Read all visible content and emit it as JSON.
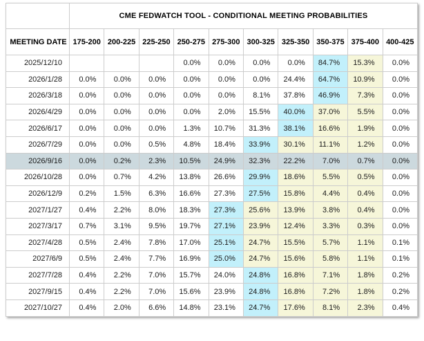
{
  "title": "CME FEDWATCH TOOL - CONDITIONAL MEETING PROBABILITIES",
  "meeting_date_header": "MEETING DATE",
  "rate_ranges": [
    "175-200",
    "200-225",
    "225-250",
    "250-275",
    "275-300",
    "300-325",
    "325-350",
    "350-375",
    "375-400",
    "400-425"
  ],
  "colors": {
    "blue_highlight": "#c2f0fb",
    "yellow_highlight": "#f6f6d9",
    "selected_row": "#ccd9de",
    "border": "#cccccc"
  },
  "rows": [
    {
      "date": "2025/12/10",
      "selected": false,
      "cells": [
        {
          "text": "",
          "highlight": "none"
        },
        {
          "text": "",
          "highlight": "none"
        },
        {
          "text": "",
          "highlight": "none"
        },
        {
          "text": "0.0%",
          "highlight": "none"
        },
        {
          "text": "0.0%",
          "highlight": "none"
        },
        {
          "text": "0.0%",
          "highlight": "none"
        },
        {
          "text": "0.0%",
          "highlight": "none"
        },
        {
          "text": "84.7%",
          "highlight": "blue"
        },
        {
          "text": "15.3%",
          "highlight": "yellow"
        },
        {
          "text": "0.0%",
          "highlight": "none"
        }
      ]
    },
    {
      "date": "2026/1/28",
      "selected": false,
      "cells": [
        {
          "text": "0.0%",
          "highlight": "none"
        },
        {
          "text": "0.0%",
          "highlight": "none"
        },
        {
          "text": "0.0%",
          "highlight": "none"
        },
        {
          "text": "0.0%",
          "highlight": "none"
        },
        {
          "text": "0.0%",
          "highlight": "none"
        },
        {
          "text": "0.0%",
          "highlight": "none"
        },
        {
          "text": "24.4%",
          "highlight": "none"
        },
        {
          "text": "64.7%",
          "highlight": "blue"
        },
        {
          "text": "10.9%",
          "highlight": "yellow"
        },
        {
          "text": "0.0%",
          "highlight": "none"
        }
      ]
    },
    {
      "date": "2026/3/18",
      "selected": false,
      "cells": [
        {
          "text": "0.0%",
          "highlight": "none"
        },
        {
          "text": "0.0%",
          "highlight": "none"
        },
        {
          "text": "0.0%",
          "highlight": "none"
        },
        {
          "text": "0.0%",
          "highlight": "none"
        },
        {
          "text": "0.0%",
          "highlight": "none"
        },
        {
          "text": "8.1%",
          "highlight": "none"
        },
        {
          "text": "37.8%",
          "highlight": "none"
        },
        {
          "text": "46.9%",
          "highlight": "blue"
        },
        {
          "text": "7.3%",
          "highlight": "yellow"
        },
        {
          "text": "0.0%",
          "highlight": "none"
        }
      ]
    },
    {
      "date": "2026/4/29",
      "selected": false,
      "cells": [
        {
          "text": "0.0%",
          "highlight": "none"
        },
        {
          "text": "0.0%",
          "highlight": "none"
        },
        {
          "text": "0.0%",
          "highlight": "none"
        },
        {
          "text": "0.0%",
          "highlight": "none"
        },
        {
          "text": "2.0%",
          "highlight": "none"
        },
        {
          "text": "15.5%",
          "highlight": "none"
        },
        {
          "text": "40.0%",
          "highlight": "blue"
        },
        {
          "text": "37.0%",
          "highlight": "yellow"
        },
        {
          "text": "5.5%",
          "highlight": "yellow"
        },
        {
          "text": "0.0%",
          "highlight": "none"
        }
      ]
    },
    {
      "date": "2026/6/17",
      "selected": false,
      "cells": [
        {
          "text": "0.0%",
          "highlight": "none"
        },
        {
          "text": "0.0%",
          "highlight": "none"
        },
        {
          "text": "0.0%",
          "highlight": "none"
        },
        {
          "text": "1.3%",
          "highlight": "none"
        },
        {
          "text": "10.7%",
          "highlight": "none"
        },
        {
          "text": "31.3%",
          "highlight": "none"
        },
        {
          "text": "38.1%",
          "highlight": "blue"
        },
        {
          "text": "16.6%",
          "highlight": "yellow"
        },
        {
          "text": "1.9%",
          "highlight": "yellow"
        },
        {
          "text": "0.0%",
          "highlight": "none"
        }
      ]
    },
    {
      "date": "2026/7/29",
      "selected": false,
      "cells": [
        {
          "text": "0.0%",
          "highlight": "none"
        },
        {
          "text": "0.0%",
          "highlight": "none"
        },
        {
          "text": "0.5%",
          "highlight": "none"
        },
        {
          "text": "4.8%",
          "highlight": "none"
        },
        {
          "text": "18.4%",
          "highlight": "none"
        },
        {
          "text": "33.9%",
          "highlight": "blue"
        },
        {
          "text": "30.1%",
          "highlight": "yellow"
        },
        {
          "text": "11.1%",
          "highlight": "yellow"
        },
        {
          "text": "1.2%",
          "highlight": "yellow"
        },
        {
          "text": "0.0%",
          "highlight": "none"
        }
      ]
    },
    {
      "date": "2026/9/16",
      "selected": true,
      "cells": [
        {
          "text": "0.0%",
          "highlight": "none"
        },
        {
          "text": "0.2%",
          "highlight": "none"
        },
        {
          "text": "2.3%",
          "highlight": "none"
        },
        {
          "text": "10.5%",
          "highlight": "none"
        },
        {
          "text": "24.9%",
          "highlight": "none"
        },
        {
          "text": "32.3%",
          "highlight": "none"
        },
        {
          "text": "22.2%",
          "highlight": "none"
        },
        {
          "text": "7.0%",
          "highlight": "none"
        },
        {
          "text": "0.7%",
          "highlight": "none"
        },
        {
          "text": "0.0%",
          "highlight": "none"
        }
      ]
    },
    {
      "date": "2026/10/28",
      "selected": false,
      "cells": [
        {
          "text": "0.0%",
          "highlight": "none"
        },
        {
          "text": "0.7%",
          "highlight": "none"
        },
        {
          "text": "4.2%",
          "highlight": "none"
        },
        {
          "text": "13.8%",
          "highlight": "none"
        },
        {
          "text": "26.6%",
          "highlight": "none"
        },
        {
          "text": "29.9%",
          "highlight": "blue"
        },
        {
          "text": "18.6%",
          "highlight": "yellow"
        },
        {
          "text": "5.5%",
          "highlight": "yellow"
        },
        {
          "text": "0.5%",
          "highlight": "yellow"
        },
        {
          "text": "0.0%",
          "highlight": "none"
        }
      ]
    },
    {
      "date": "2026/12/9",
      "selected": false,
      "cells": [
        {
          "text": "0.2%",
          "highlight": "none"
        },
        {
          "text": "1.5%",
          "highlight": "none"
        },
        {
          "text": "6.3%",
          "highlight": "none"
        },
        {
          "text": "16.6%",
          "highlight": "none"
        },
        {
          "text": "27.3%",
          "highlight": "none"
        },
        {
          "text": "27.5%",
          "highlight": "blue"
        },
        {
          "text": "15.8%",
          "highlight": "yellow"
        },
        {
          "text": "4.4%",
          "highlight": "yellow"
        },
        {
          "text": "0.4%",
          "highlight": "yellow"
        },
        {
          "text": "0.0%",
          "highlight": "none"
        }
      ]
    },
    {
      "date": "2027/1/27",
      "selected": false,
      "cells": [
        {
          "text": "0.4%",
          "highlight": "none"
        },
        {
          "text": "2.2%",
          "highlight": "none"
        },
        {
          "text": "8.0%",
          "highlight": "none"
        },
        {
          "text": "18.3%",
          "highlight": "none"
        },
        {
          "text": "27.3%",
          "highlight": "blue"
        },
        {
          "text": "25.6%",
          "highlight": "yellow"
        },
        {
          "text": "13.9%",
          "highlight": "yellow"
        },
        {
          "text": "3.8%",
          "highlight": "yellow"
        },
        {
          "text": "0.4%",
          "highlight": "yellow"
        },
        {
          "text": "0.0%",
          "highlight": "none"
        }
      ]
    },
    {
      "date": "2027/3/17",
      "selected": false,
      "cells": [
        {
          "text": "0.7%",
          "highlight": "none"
        },
        {
          "text": "3.1%",
          "highlight": "none"
        },
        {
          "text": "9.5%",
          "highlight": "none"
        },
        {
          "text": "19.7%",
          "highlight": "none"
        },
        {
          "text": "27.1%",
          "highlight": "blue"
        },
        {
          "text": "23.9%",
          "highlight": "yellow"
        },
        {
          "text": "12.4%",
          "highlight": "yellow"
        },
        {
          "text": "3.3%",
          "highlight": "yellow"
        },
        {
          "text": "0.3%",
          "highlight": "yellow"
        },
        {
          "text": "0.0%",
          "highlight": "none"
        }
      ]
    },
    {
      "date": "2027/4/28",
      "selected": false,
      "cells": [
        {
          "text": "0.5%",
          "highlight": "none"
        },
        {
          "text": "2.4%",
          "highlight": "none"
        },
        {
          "text": "7.8%",
          "highlight": "none"
        },
        {
          "text": "17.0%",
          "highlight": "none"
        },
        {
          "text": "25.1%",
          "highlight": "blue"
        },
        {
          "text": "24.7%",
          "highlight": "yellow"
        },
        {
          "text": "15.5%",
          "highlight": "yellow"
        },
        {
          "text": "5.7%",
          "highlight": "yellow"
        },
        {
          "text": "1.1%",
          "highlight": "yellow"
        },
        {
          "text": "0.1%",
          "highlight": "none"
        }
      ]
    },
    {
      "date": "2027/6/9",
      "selected": false,
      "cells": [
        {
          "text": "0.5%",
          "highlight": "none"
        },
        {
          "text": "2.4%",
          "highlight": "none"
        },
        {
          "text": "7.7%",
          "highlight": "none"
        },
        {
          "text": "16.9%",
          "highlight": "none"
        },
        {
          "text": "25.0%",
          "highlight": "blue"
        },
        {
          "text": "24.7%",
          "highlight": "yellow"
        },
        {
          "text": "15.6%",
          "highlight": "yellow"
        },
        {
          "text": "5.8%",
          "highlight": "yellow"
        },
        {
          "text": "1.1%",
          "highlight": "yellow"
        },
        {
          "text": "0.1%",
          "highlight": "none"
        }
      ]
    },
    {
      "date": "2027/7/28",
      "selected": false,
      "cells": [
        {
          "text": "0.4%",
          "highlight": "none"
        },
        {
          "text": "2.2%",
          "highlight": "none"
        },
        {
          "text": "7.0%",
          "highlight": "none"
        },
        {
          "text": "15.7%",
          "highlight": "none"
        },
        {
          "text": "24.0%",
          "highlight": "none"
        },
        {
          "text": "24.8%",
          "highlight": "blue"
        },
        {
          "text": "16.8%",
          "highlight": "yellow"
        },
        {
          "text": "7.1%",
          "highlight": "yellow"
        },
        {
          "text": "1.8%",
          "highlight": "yellow"
        },
        {
          "text": "0.2%",
          "highlight": "none"
        }
      ]
    },
    {
      "date": "2027/9/15",
      "selected": false,
      "cells": [
        {
          "text": "0.4%",
          "highlight": "none"
        },
        {
          "text": "2.2%",
          "highlight": "none"
        },
        {
          "text": "7.0%",
          "highlight": "none"
        },
        {
          "text": "15.6%",
          "highlight": "none"
        },
        {
          "text": "23.9%",
          "highlight": "none"
        },
        {
          "text": "24.8%",
          "highlight": "blue"
        },
        {
          "text": "16.8%",
          "highlight": "yellow"
        },
        {
          "text": "7.2%",
          "highlight": "yellow"
        },
        {
          "text": "1.8%",
          "highlight": "yellow"
        },
        {
          "text": "0.2%",
          "highlight": "none"
        }
      ]
    },
    {
      "date": "2027/10/27",
      "selected": false,
      "cells": [
        {
          "text": "0.4%",
          "highlight": "none"
        },
        {
          "text": "2.0%",
          "highlight": "none"
        },
        {
          "text": "6.6%",
          "highlight": "none"
        },
        {
          "text": "14.8%",
          "highlight": "none"
        },
        {
          "text": "23.1%",
          "highlight": "none"
        },
        {
          "text": "24.7%",
          "highlight": "blue"
        },
        {
          "text": "17.6%",
          "highlight": "yellow"
        },
        {
          "text": "8.1%",
          "highlight": "yellow"
        },
        {
          "text": "2.3%",
          "highlight": "yellow"
        },
        {
          "text": "0.4%",
          "highlight": "none"
        }
      ]
    }
  ]
}
